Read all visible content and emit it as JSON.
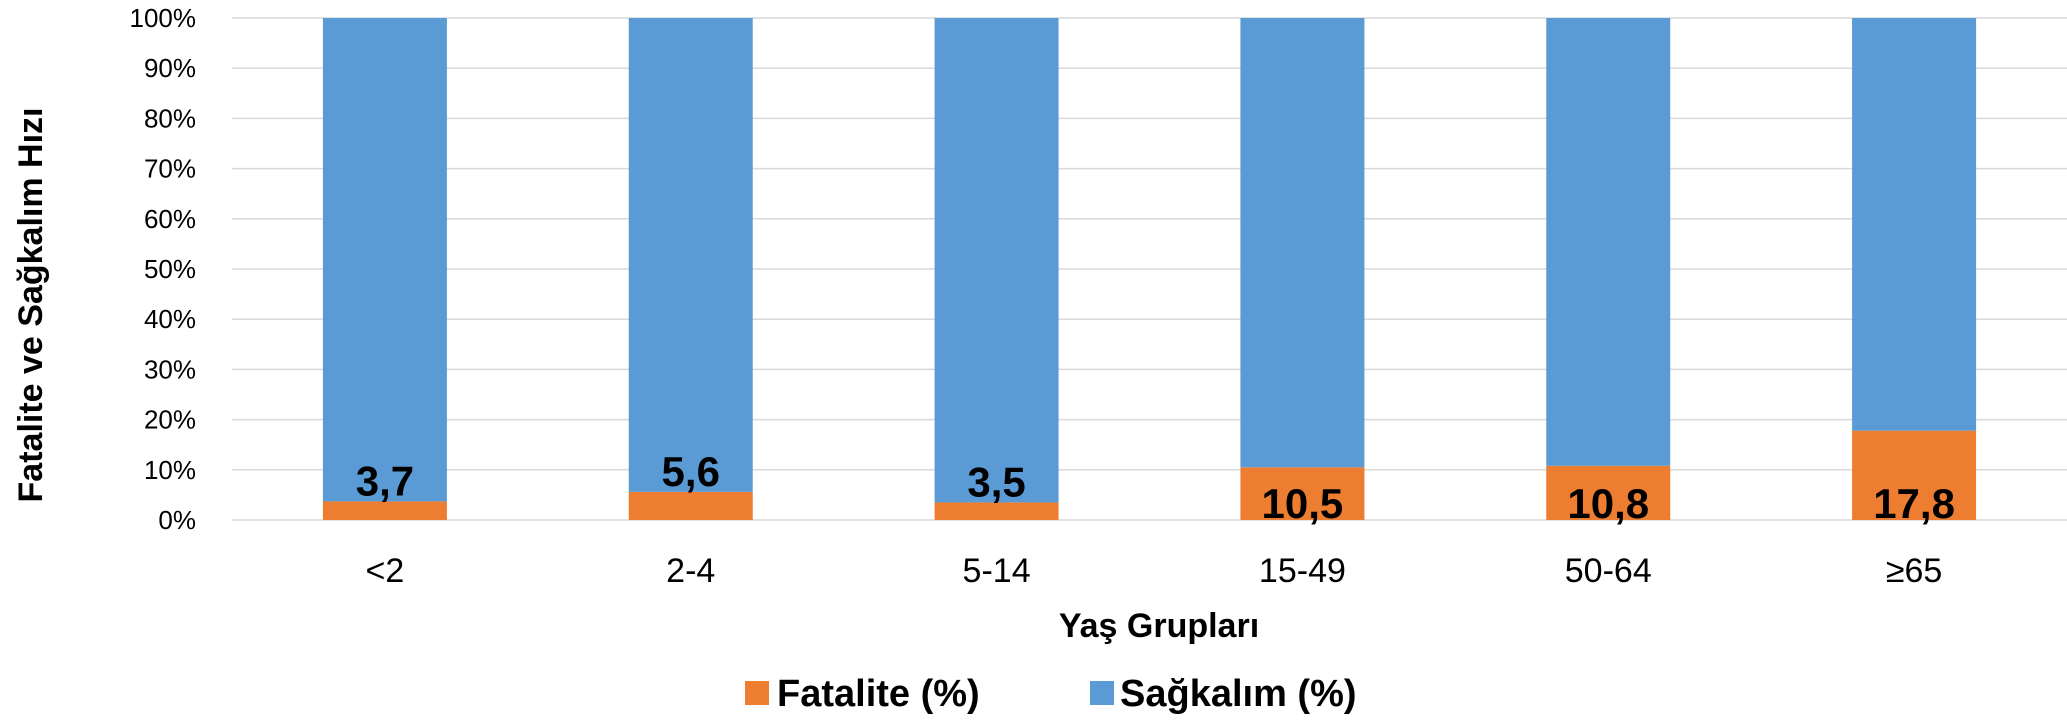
{
  "chart_data": {
    "type": "bar",
    "stacked": true,
    "percent_stacked": true,
    "categories": [
      "<2",
      "2-4",
      "5-14",
      "15-49",
      "50-64",
      "≥65"
    ],
    "series": [
      {
        "name": "Fatalite (%)",
        "color": "#ED7D31",
        "values": [
          3.7,
          5.6,
          3.5,
          10.5,
          10.8,
          17.8
        ]
      },
      {
        "name": "Sağkalım (%)",
        "color": "#5B9BD5",
        "values": [
          96.3,
          94.4,
          96.5,
          89.5,
          89.2,
          82.2
        ]
      }
    ],
    "data_labels": [
      "3,7",
      "5,6",
      "3,5",
      "10,5",
      "10,8",
      "17,8"
    ],
    "xlabel": "Yaş Grupları",
    "ylabel": "Fatalite ve Sağkalım Hızı",
    "ylim": [
      0,
      100
    ],
    "yticks": [
      "0%",
      "10%",
      "20%",
      "30%",
      "40%",
      "50%",
      "60%",
      "70%",
      "80%",
      "90%",
      "100%"
    ],
    "grid": true,
    "legend_position": "bottom"
  }
}
